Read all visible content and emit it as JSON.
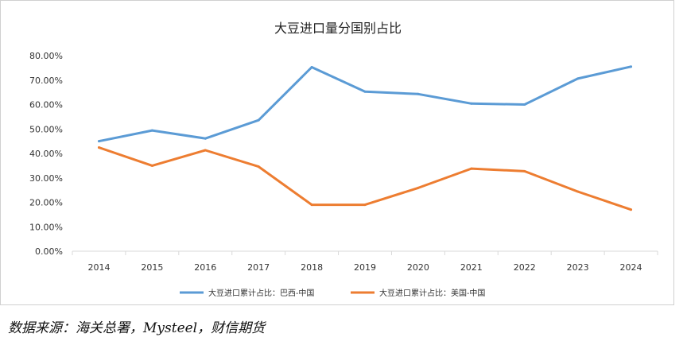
{
  "chart_data": {
    "type": "line",
    "title": "大豆进口量分国别占比",
    "categories": [
      "2014",
      "2015",
      "2016",
      "2017",
      "2018",
      "2019",
      "2020",
      "2021",
      "2022",
      "2023",
      "2024"
    ],
    "y_ticks": [
      "0.00%",
      "10.00%",
      "20.00%",
      "30.00%",
      "40.00%",
      "50.00%",
      "60.00%",
      "70.00%",
      "80.00%"
    ],
    "ylim": [
      0,
      80
    ],
    "grid": "none",
    "legend_position": "bottom",
    "series": [
      {
        "name": "大豆进口累计占比：巴西-中国",
        "color": "#5b9bd5",
        "values": [
          45.0,
          49.4,
          46.1,
          53.6,
          75.3,
          65.3,
          64.3,
          60.4,
          60.0,
          70.6,
          75.5
        ]
      },
      {
        "name": "大豆进口累计占比：美国-中国",
        "color": "#ed7d31",
        "values": [
          42.4,
          35.0,
          41.3,
          34.6,
          19.0,
          19.0,
          25.9,
          33.8,
          32.7,
          24.4,
          17.0
        ]
      }
    ]
  },
  "source_note": "数据来源：海关总署，Mysteel，财信期货"
}
